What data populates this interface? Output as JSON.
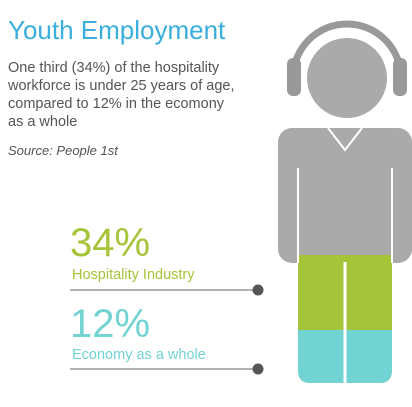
{
  "header": {
    "title": "Youth Employment"
  },
  "description": [
    "One third (34%) of the hospitality",
    "workforce is under 25 years of age,",
    "compared to 12% in the ecomony",
    "as a whole"
  ],
  "source": "Source: People 1st",
  "stats": [
    {
      "value": "34%",
      "label": "Hospitality Industry"
    },
    {
      "value": "12%",
      "label": "Economy as a whole"
    }
  ]
}
